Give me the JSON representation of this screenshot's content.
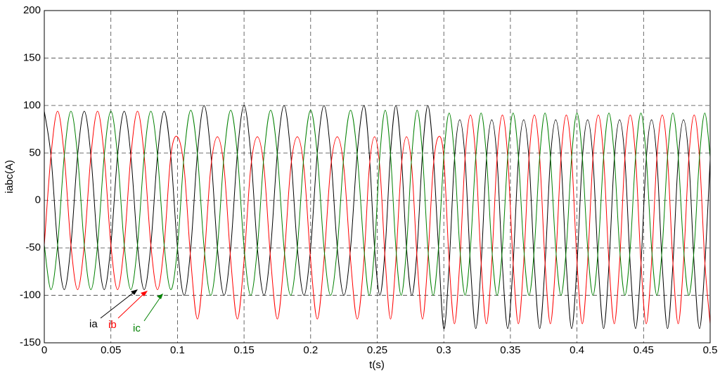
{
  "chart_data": {
    "type": "line",
    "x_label": "t(s)",
    "y_label": "iabc(A)",
    "xlim": [
      0,
      0.5
    ],
    "xticks": [
      0,
      0.05,
      0.1,
      0.15,
      0.2,
      0.25,
      0.3,
      0.35,
      0.4,
      0.45,
      0.5
    ],
    "ylim": [
      -150,
      200
    ],
    "yticks": [
      -150,
      -100,
      -50,
      0,
      50,
      100,
      150,
      200
    ],
    "grid": true,
    "x": [
      0,
      0.005,
      0.01,
      0.015,
      0.02,
      0.025,
      0.03,
      0.035,
      0.04,
      0.045,
      0.05,
      0.055,
      0.06,
      0.065,
      0.07,
      0.075,
      0.08,
      0.085,
      0.09,
      0.095,
      0.1,
      0.105,
      0.11,
      0.115,
      0.12,
      0.125,
      0.13,
      0.135,
      0.14,
      0.145,
      0.15,
      0.155,
      0.16,
      0.165,
      0.17,
      0.175,
      0.18,
      0.185,
      0.19,
      0.195,
      0.2,
      0.205,
      0.21,
      0.215,
      0.22,
      0.225,
      0.23,
      0.235,
      0.24,
      0.244,
      0.248,
      0.252,
      0.256,
      0.26,
      0.264,
      0.268,
      0.272,
      0.276,
      0.28,
      0.284,
      0.288,
      0.292,
      0.296,
      0.3,
      0.304,
      0.308,
      0.312,
      0.316,
      0.32,
      0.324,
      0.328,
      0.332,
      0.336,
      0.34,
      0.344,
      0.348,
      0.352,
      0.356,
      0.36,
      0.364,
      0.368,
      0.372,
      0.376,
      0.38,
      0.384,
      0.388,
      0.392,
      0.396,
      0.4,
      0.404,
      0.408,
      0.412,
      0.416,
      0.42,
      0.424,
      0.428,
      0.432,
      0.436,
      0.44,
      0.444,
      0.448,
      0.452,
      0.456,
      0.46,
      0.464,
      0.468,
      0.472,
      0.476,
      0.48,
      0.484,
      0.488,
      0.492,
      0.496,
      0.5
    ],
    "series": [
      {
        "name": "ia",
        "color": "#000000",
        "values": [
          94,
          47,
          -47,
          -94,
          -47,
          47,
          94,
          47,
          -47,
          -94,
          -47,
          47,
          94,
          47,
          -47,
          -94,
          -47,
          47,
          94,
          47,
          -50,
          -100,
          -50,
          50,
          100,
          50,
          -50,
          -100,
          -50,
          50,
          100,
          50,
          -50,
          -100,
          -50,
          50,
          100,
          50,
          -50,
          -100,
          -50,
          50,
          100,
          50,
          -50,
          -100,
          -50,
          50,
          100,
          50,
          -50,
          -100,
          -50,
          50,
          100,
          50,
          -50,
          -100,
          -50,
          50,
          100,
          50,
          -50,
          -135,
          -68,
          43,
          85,
          43,
          -68,
          -135,
          -68,
          43,
          85,
          43,
          -68,
          -135,
          -68,
          43,
          85,
          43,
          -68,
          -135,
          -68,
          43,
          85,
          43,
          -68,
          -135,
          -68,
          43,
          85,
          43,
          -68,
          -135,
          -68,
          43,
          85,
          43,
          -68,
          -135,
          -68,
          43,
          85,
          43,
          -68,
          -135,
          -68,
          43,
          85,
          43,
          -68,
          -135,
          -68,
          43
        ]
      },
      {
        "name": "ib",
        "color": "#ff0000",
        "values": [
          -47,
          47,
          94,
          47,
          -47,
          -94,
          -47,
          47,
          94,
          47,
          -47,
          -94,
          -47,
          47,
          94,
          47,
          -47,
          -94,
          -47,
          47,
          67,
          34,
          -63,
          -125,
          -63,
          34,
          67,
          34,
          -63,
          -125,
          -63,
          34,
          67,
          34,
          -63,
          -125,
          -63,
          34,
          67,
          34,
          -63,
          -125,
          -63,
          34,
          67,
          34,
          -63,
          -125,
          -63,
          34,
          67,
          34,
          -63,
          -125,
          -63,
          34,
          67,
          34,
          -63,
          -125,
          -63,
          34,
          67,
          45,
          -65,
          -130,
          -65,
          45,
          90,
          45,
          -65,
          -130,
          -65,
          45,
          90,
          45,
          -65,
          -130,
          -65,
          45,
          90,
          45,
          -65,
          -130,
          -65,
          45,
          90,
          45,
          -65,
          -130,
          -65,
          45,
          90,
          45,
          -65,
          -130,
          -65,
          45,
          90,
          45,
          -65,
          -130,
          -65,
          45,
          90,
          45,
          -65,
          -130,
          -65,
          45,
          90,
          45,
          -65,
          -130
        ]
      },
      {
        "name": "ic",
        "color": "#008000",
        "values": [
          -47,
          -94,
          -47,
          47,
          94,
          47,
          -47,
          -94,
          -47,
          47,
          94,
          47,
          -47,
          -94,
          -47,
          47,
          94,
          47,
          -47,
          -94,
          -50,
          48,
          95,
          48,
          -50,
          -100,
          -50,
          48,
          95,
          48,
          -50,
          -100,
          -50,
          48,
          95,
          48,
          -50,
          -100,
          -50,
          48,
          95,
          48,
          -50,
          -100,
          -50,
          48,
          95,
          48,
          -50,
          -100,
          -50,
          48,
          95,
          48,
          -50,
          -100,
          -50,
          48,
          95,
          48,
          -50,
          -100,
          -50,
          46,
          92,
          46,
          -50,
          -100,
          -50,
          46,
          92,
          46,
          -50,
          -100,
          -50,
          46,
          92,
          46,
          -50,
          -100,
          -50,
          46,
          92,
          46,
          -50,
          -100,
          -50,
          46,
          92,
          46,
          -50,
          -100,
          -50,
          46,
          92,
          46,
          -50,
          -100,
          -50,
          46,
          92,
          46,
          -50,
          -100,
          -50,
          46,
          92,
          46,
          -50,
          -100,
          -50,
          46,
          92,
          46
        ]
      }
    ]
  }
}
